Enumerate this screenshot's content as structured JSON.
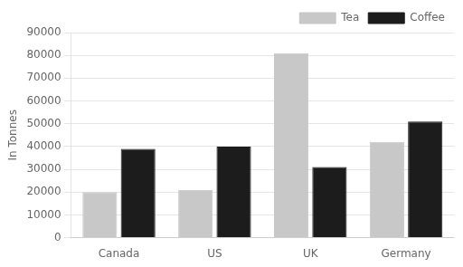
{
  "chart_data": {
    "type": "bar",
    "categories": [
      "Canada",
      "US",
      "UK",
      "Germany"
    ],
    "series": [
      {
        "name": "Tea",
        "color": "#c8c8c8",
        "values": [
          20000,
          21000,
          81000,
          42000
        ]
      },
      {
        "name": "Coffee",
        "color": "#1c1c1c",
        "values": [
          39000,
          40000,
          31000,
          51000
        ]
      }
    ],
    "ylabel": "In Tonnes",
    "ylim": [
      0,
      90000
    ],
    "yticks": [
      0,
      10000,
      20000,
      30000,
      40000,
      50000,
      60000,
      70000,
      80000,
      90000
    ],
    "grid": true,
    "legend": "upper right"
  }
}
